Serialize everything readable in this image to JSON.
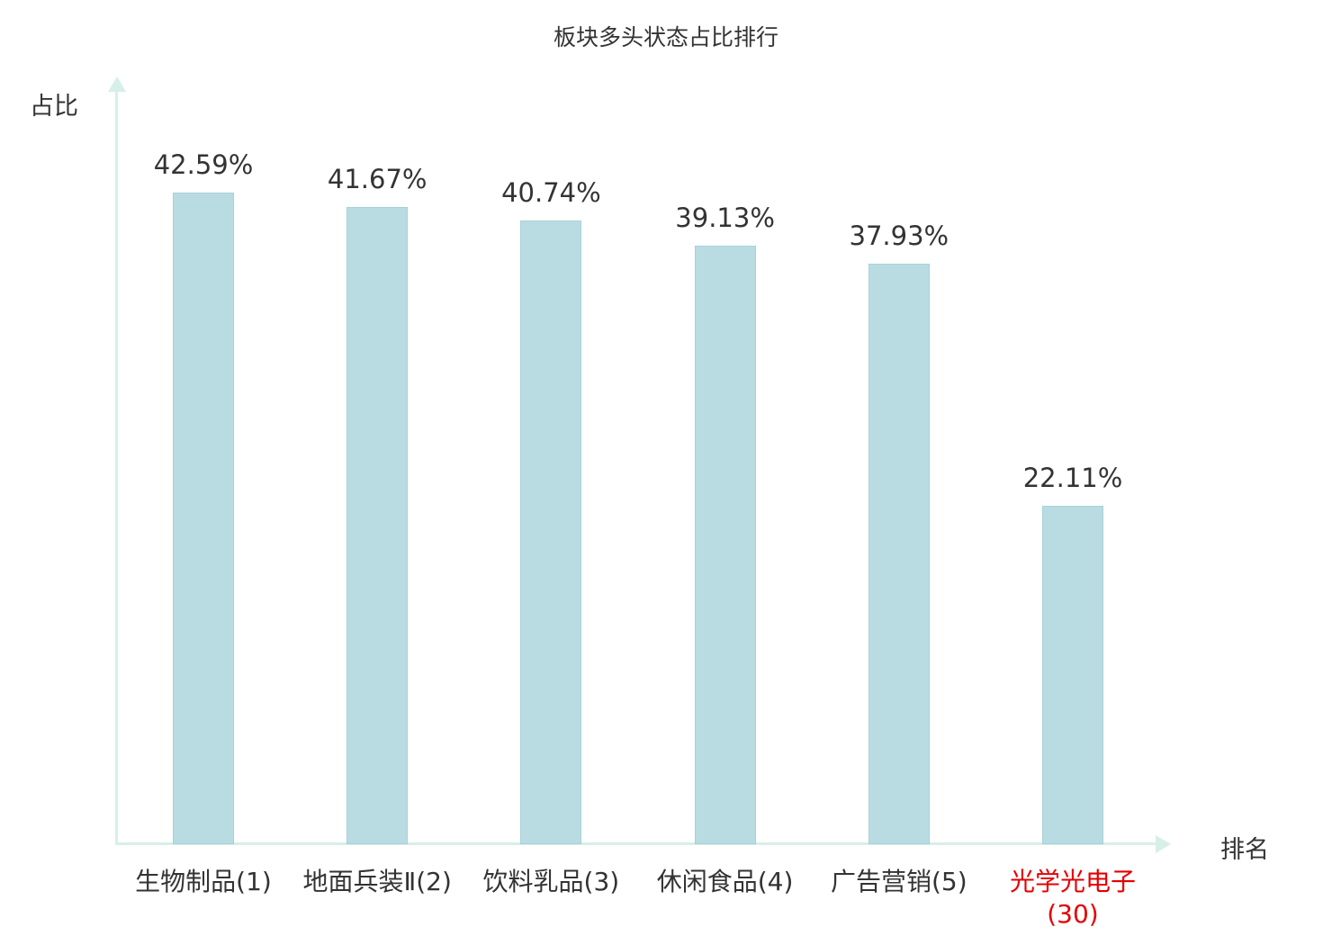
{
  "chart_data": {
    "type": "bar",
    "title": "板块多头状态占比排行",
    "ylabel": "占比",
    "xlabel": "排名",
    "categories": [
      "生物制品(1)",
      "地面兵装Ⅱ(2)",
      "饮料乳品(3)",
      "休闲食品(4)",
      "广告营销(5)",
      "光学光电子(30)"
    ],
    "values": [
      42.59,
      41.67,
      40.74,
      39.13,
      37.93,
      22.11
    ],
    "value_labels": [
      "42.59%",
      "41.67%",
      "40.74%",
      "39.13%",
      "37.93%",
      "22.11%"
    ],
    "highlight_index": 5,
    "ylim": [
      0,
      50
    ],
    "grid": false,
    "legend": "none",
    "colors": {
      "bar_fill": "#b9dce2",
      "bar_border": "#a8d0d8",
      "axis": "#d7efe9",
      "text": "#333333",
      "highlight": "#e60000"
    }
  }
}
